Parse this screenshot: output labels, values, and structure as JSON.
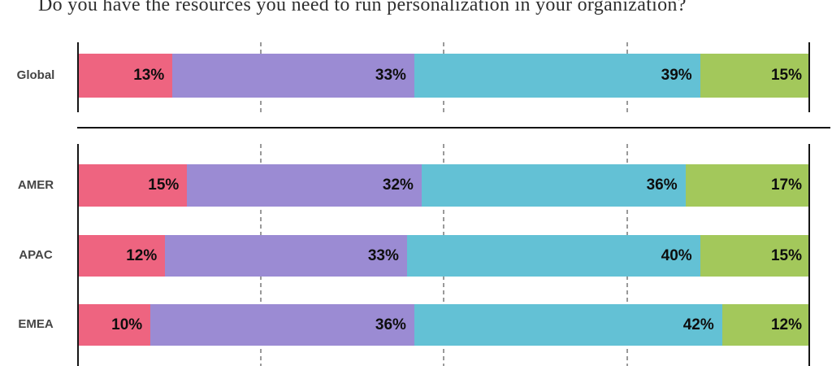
{
  "title": "Do you have the resources you need to run personalization in your organization?",
  "colors": {
    "segment_pink": "#ee6480",
    "segment_purple": "#9b8bd3",
    "segment_teal": "#63c1d5",
    "segment_green": "#a3c85b",
    "axis_line": "#161616",
    "gridline": "#9a9a9a",
    "value_label": "#0e0e0e",
    "category_label": "#454545",
    "divider_line": "#151515"
  },
  "chart_data": {
    "type": "bar",
    "stacked": true,
    "orientation": "horizontal",
    "title": "Do you have the resources you need to run personalization in your organization?",
    "categories": [
      "Global",
      "AMER",
      "APAC",
      "EMEA"
    ],
    "series": [
      {
        "name": "segment-1-pink",
        "color": "#ee6480",
        "values": [
          13,
          15,
          12,
          10
        ]
      },
      {
        "name": "segment-2-purple",
        "color": "#9b8bd3",
        "values": [
          33,
          32,
          33,
          36
        ]
      },
      {
        "name": "segment-3-teal",
        "color": "#63c1d5",
        "values": [
          39,
          36,
          40,
          42
        ]
      },
      {
        "name": "segment-4-green",
        "color": "#a3c85b",
        "values": [
          15,
          17,
          15,
          12
        ]
      }
    ],
    "value_format": "percent",
    "value_labels_shown": true,
    "xlim": [
      0,
      100
    ],
    "gridlines_at_percent": [
      25,
      50,
      75
    ],
    "axis_whiskers_at_percent": [
      0,
      100
    ],
    "groups": [
      [
        "Global"
      ],
      [
        "AMER",
        "APAC",
        "EMEA"
      ]
    ],
    "divider_between_groups": true
  }
}
